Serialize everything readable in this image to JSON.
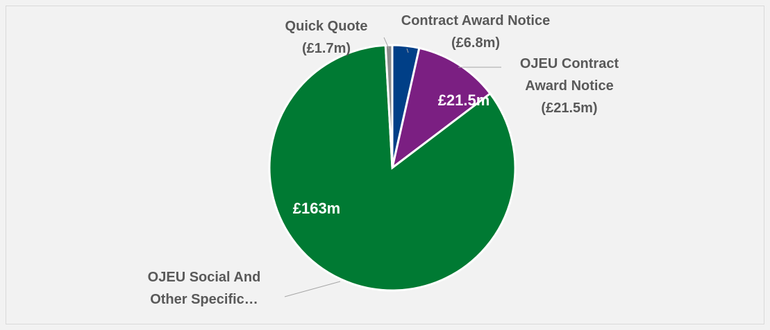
{
  "chart_data": {
    "type": "pie",
    "categories": [
      "Contract Award Notice",
      "OJEU Contract Award Notice",
      "OJEU Social And Other Specific…",
      "Quick Quote"
    ],
    "values": [
      6.8,
      21.5,
      163,
      1.7
    ],
    "value_labels": [
      "(£6.8m)",
      "(£21.5m)",
      null,
      "(£1.7m)"
    ],
    "inner_labels": [
      null,
      "£21.5m",
      "£163m",
      null
    ],
    "colors": [
      "#003f87",
      "#7b1f82",
      "#007a33",
      "#8c8c8c"
    ]
  }
}
